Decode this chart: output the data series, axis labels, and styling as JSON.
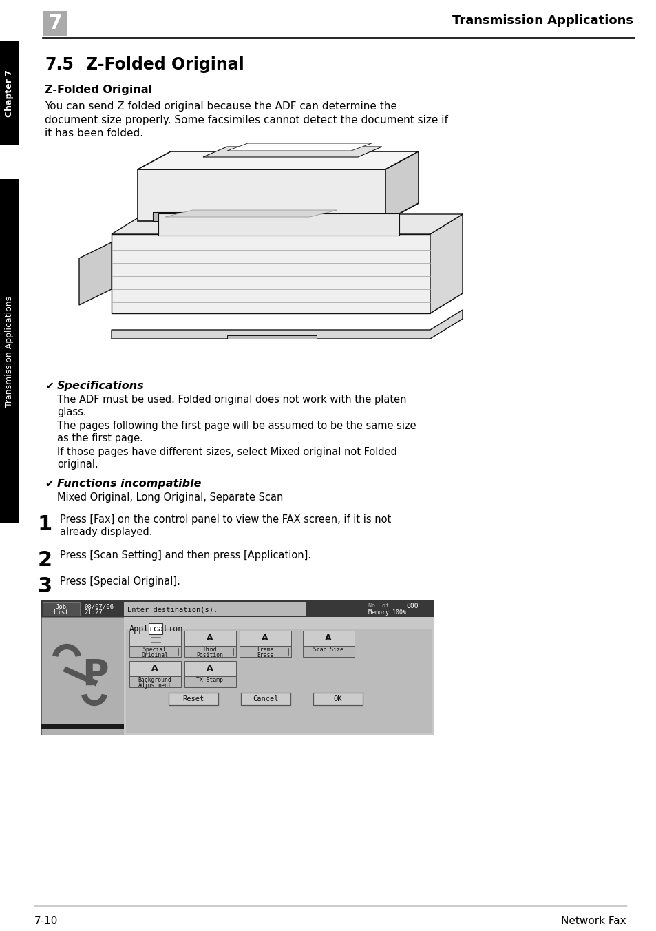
{
  "page_bg": "#ffffff",
  "header_chapter_num": "7",
  "header_chapter_num_bg": "#888888",
  "header_title": "Transmission Applications",
  "header_line_color": "#000000",
  "sidebar_chapter_bg": "#000000",
  "sidebar_text_chapter": "Chapter 7",
  "sidebar_text_apps": "Transmission Applications",
  "section_number": "7.5",
  "section_title": "Z-Folded Original",
  "subsection_title": "Z-Folded Original",
  "body_line1": "You can send Z folded original because the ADF can determine the",
  "body_line2": "document size properly. Some facsimiles cannot detect the document size if",
  "body_line3": "it has been folded.",
  "spec_label": "Specifications",
  "spec_lines": [
    "The ADF must be used. Folded original does not work with the platen",
    "glass.",
    "The pages following the first page will be assumed to be the same size",
    "as the first page.",
    "If those pages have different sizes, select Mixed original not Folded",
    "original."
  ],
  "func_label": "Functions incompatible",
  "func_text": "Mixed Original, Long Original, Separate Scan",
  "step1_num": "1",
  "step1_lines": [
    "Press [Fax] on the control panel to view the FAX screen, if it is not",
    "already displayed."
  ],
  "step2_num": "2",
  "step2_text": "Press [Scan Setting] and then press [Application].",
  "step3_num": "3",
  "step3_text": "Press [Special Original].",
  "footer_left": "7-10",
  "footer_right": "Network Fax"
}
